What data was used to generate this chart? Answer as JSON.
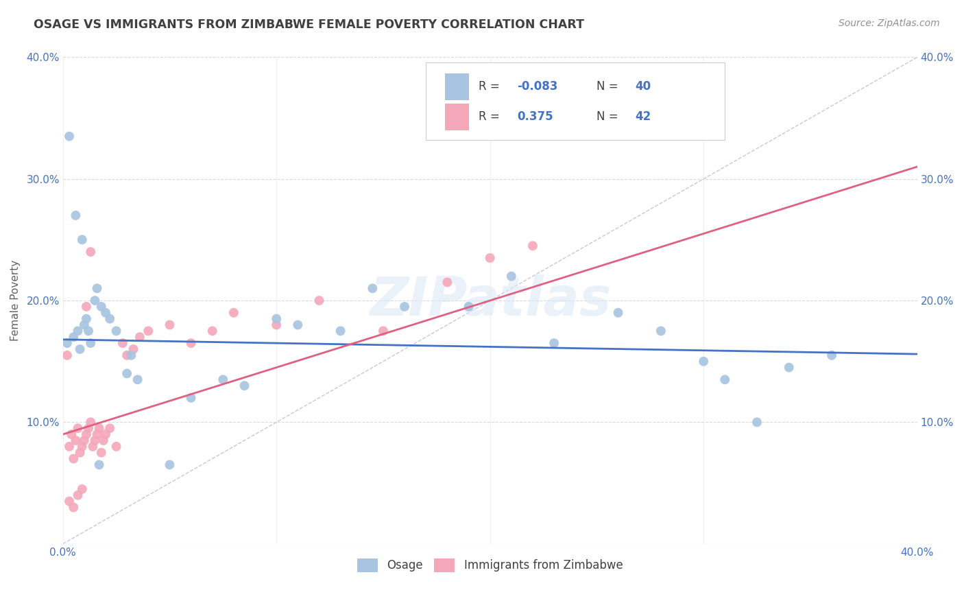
{
  "title": "OSAGE VS IMMIGRANTS FROM ZIMBABWE FEMALE POVERTY CORRELATION CHART",
  "source": "Source: ZipAtlas.com",
  "ylabel": "Female Poverty",
  "xlim": [
    0.0,
    0.4
  ],
  "ylim": [
    0.0,
    0.4
  ],
  "osage_color": "#a8c4e0",
  "zimbabwe_color": "#f4a7b9",
  "osage_line_color": "#4472c4",
  "zimbabwe_line_color": "#e06080",
  "diagonal_color": "#c8c8d8",
  "grid_color": "#d8d8e8",
  "legend_r_color": "#4472c4",
  "title_color": "#404040",
  "watermark_text": "ZIPatlas",
  "legend_r1": "-0.083",
  "legend_n1": "40",
  "legend_r2": "0.375",
  "legend_n2": "42",
  "osage_x": [
    0.002,
    0.005,
    0.007,
    0.008,
    0.01,
    0.011,
    0.012,
    0.013,
    0.015,
    0.016,
    0.018,
    0.02,
    0.022,
    0.025,
    0.03,
    0.032,
    0.035,
    0.06,
    0.075,
    0.085,
    0.1,
    0.11,
    0.13,
    0.145,
    0.16,
    0.19,
    0.21,
    0.23,
    0.26,
    0.28,
    0.3,
    0.31,
    0.325,
    0.34,
    0.36,
    0.003,
    0.006,
    0.009,
    0.017,
    0.05
  ],
  "osage_y": [
    0.165,
    0.17,
    0.175,
    0.16,
    0.18,
    0.185,
    0.175,
    0.165,
    0.2,
    0.21,
    0.195,
    0.19,
    0.185,
    0.175,
    0.14,
    0.155,
    0.135,
    0.12,
    0.135,
    0.13,
    0.185,
    0.18,
    0.175,
    0.21,
    0.195,
    0.195,
    0.22,
    0.165,
    0.19,
    0.175,
    0.15,
    0.135,
    0.1,
    0.145,
    0.155,
    0.335,
    0.27,
    0.25,
    0.065,
    0.065
  ],
  "zimbabwe_x": [
    0.002,
    0.003,
    0.004,
    0.005,
    0.006,
    0.007,
    0.008,
    0.009,
    0.01,
    0.011,
    0.012,
    0.013,
    0.014,
    0.015,
    0.016,
    0.017,
    0.018,
    0.019,
    0.02,
    0.022,
    0.025,
    0.028,
    0.03,
    0.033,
    0.036,
    0.04,
    0.05,
    0.06,
    0.07,
    0.08,
    0.1,
    0.12,
    0.15,
    0.18,
    0.2,
    0.22,
    0.003,
    0.005,
    0.007,
    0.009,
    0.011,
    0.013
  ],
  "zimbabwe_y": [
    0.155,
    0.08,
    0.09,
    0.07,
    0.085,
    0.095,
    0.075,
    0.08,
    0.085,
    0.09,
    0.095,
    0.1,
    0.08,
    0.085,
    0.09,
    0.095,
    0.075,
    0.085,
    0.09,
    0.095,
    0.08,
    0.165,
    0.155,
    0.16,
    0.17,
    0.175,
    0.18,
    0.165,
    0.175,
    0.19,
    0.18,
    0.2,
    0.175,
    0.215,
    0.235,
    0.245,
    0.035,
    0.03,
    0.04,
    0.045,
    0.195,
    0.24
  ],
  "osage_intercept": 0.168,
  "osage_slope": -0.03,
  "zimbabwe_intercept": 0.09,
  "zimbabwe_slope": 0.55
}
